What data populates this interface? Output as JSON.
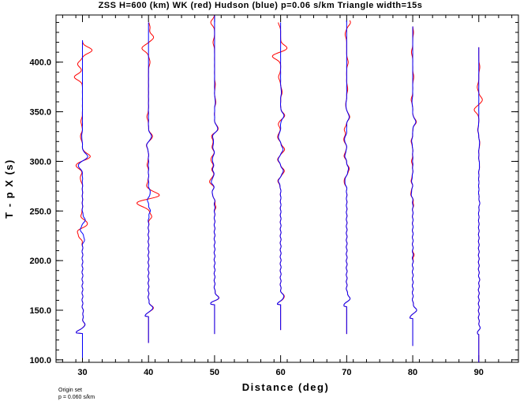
{
  "chart_data": {
    "type": "line",
    "title": "ZSS H=600 (km) WK (red) Hudson (blue) p=0.06 s/km Triangle width=15s",
    "xlabel": "Distance (deg)",
    "ylabel": "T - p X (s)",
    "xlim": [
      26,
      96
    ],
    "ylim": [
      97.5,
      447.5
    ],
    "xticks": [
      30,
      40,
      50,
      60,
      70,
      80,
      90
    ],
    "xtick_labels": [
      "30",
      "40",
      "50",
      "60",
      "70",
      "80",
      "90"
    ],
    "yticks": [
      100,
      150,
      200,
      250,
      300,
      350,
      400
    ],
    "ytick_labels": [
      "100.0",
      "150.0",
      "200.0",
      "250.0",
      "300.0",
      "350.0",
      "400.0"
    ],
    "grid": false,
    "series": [
      {
        "name": "WK",
        "color": "#ff0000"
      },
      {
        "name": "Hudson",
        "color": "#0000ff"
      }
    ],
    "traces": [
      {
        "distance": 30,
        "start": 102,
        "end": 422,
        "first_arrival": 128,
        "first_amp": -2.6,
        "red": [
          [
            135,
            0.8
          ],
          [
            147,
            0.3
          ],
          [
            225,
            -1.2
          ],
          [
            230,
            -1.6
          ],
          [
            237,
            2.2
          ],
          [
            245,
            -0.6
          ],
          [
            283,
            -0.9
          ],
          [
            296,
            -2.6
          ],
          [
            305,
            3.1
          ],
          [
            325,
            -0.8
          ],
          [
            340,
            -0.6
          ],
          [
            385,
            -3.2
          ],
          [
            398,
            -1.9
          ],
          [
            412,
            3.8
          ]
        ],
        "blue": [
          [
            135,
            0.9
          ],
          [
            147,
            0.3
          ],
          [
            222,
            0.8
          ],
          [
            232,
            -0.8
          ],
          [
            241,
            1.0
          ],
          [
            296,
            -1.7
          ],
          [
            305,
            2.1
          ],
          [
            325,
            -0.3
          ]
        ]
      },
      {
        "distance": 40,
        "start": 117,
        "end": 440,
        "first_arrival": 145,
        "first_amp": -1.5,
        "red": [
          [
            152,
            1.8
          ],
          [
            245,
            1.2
          ],
          [
            258,
            -4.8
          ],
          [
            266,
            4.4
          ],
          [
            276,
            -0.7
          ],
          [
            297,
            -0.5
          ],
          [
            316,
            -0.8
          ],
          [
            325,
            1.6
          ],
          [
            345,
            -0.6
          ],
          [
            400,
            0.6
          ],
          [
            414,
            -2.6
          ],
          [
            425,
            2.0
          ],
          [
            435,
            0.6
          ]
        ],
        "blue": [
          [
            152,
            1.6
          ],
          [
            250,
            0.6
          ],
          [
            262,
            -0.4
          ],
          [
            268,
            0.8
          ],
          [
            316,
            -0.7
          ],
          [
            325,
            1.2
          ]
        ]
      },
      {
        "distance": 50,
        "start": 126,
        "end": 447,
        "first_arrival": 157,
        "first_amp": -2.0,
        "red": [
          [
            162,
            1.7
          ],
          [
            255,
            0.4
          ],
          [
            268,
            -1.0
          ],
          [
            280,
            -2.0
          ],
          [
            292,
            -1.0
          ],
          [
            302,
            -1.5
          ],
          [
            315,
            -1.0
          ],
          [
            325,
            -1.2
          ],
          [
            333,
            1.5
          ],
          [
            360,
            0.5
          ],
          [
            377,
            0.3
          ],
          [
            420,
            -0.6
          ],
          [
            440,
            -1.5
          ]
        ],
        "blue": [
          [
            162,
            1.6
          ],
          [
            268,
            -1.0
          ],
          [
            280,
            -1.3
          ],
          [
            292,
            -0.7
          ],
          [
            302,
            -0.9
          ],
          [
            315,
            -0.7
          ],
          [
            325,
            -0.8
          ],
          [
            333,
            1.3
          ],
          [
            360,
            0.3
          ]
        ]
      },
      {
        "distance": 60,
        "start": 130,
        "end": 440,
        "first_arrival": 157,
        "first_amp": -1.4,
        "red": [
          [
            163,
            1.5
          ],
          [
            280,
            -1.0
          ],
          [
            290,
            1.4
          ],
          [
            302,
            -1.1
          ],
          [
            312,
            1.5
          ],
          [
            325,
            -1.2
          ],
          [
            338,
            -0.9
          ],
          [
            346,
            1.6
          ],
          [
            370,
            0.6
          ],
          [
            385,
            -0.8
          ],
          [
            406,
            -3.3
          ],
          [
            414,
            2.6
          ],
          [
            440,
            -0.9
          ]
        ],
        "blue": [
          [
            163,
            1.3
          ],
          [
            280,
            -0.8
          ],
          [
            290,
            1.0
          ],
          [
            302,
            -0.9
          ],
          [
            312,
            0.9
          ],
          [
            325,
            -0.9
          ],
          [
            346,
            1.3
          ],
          [
            370,
            0.3
          ]
        ]
      },
      {
        "distance": 70,
        "start": 126,
        "end": 442,
        "first_arrival": 155,
        "first_amp": -1.3,
        "red": [
          [
            162,
            1.2
          ],
          [
            280,
            -1.1
          ],
          [
            292,
            1.0
          ],
          [
            306,
            -1.0
          ],
          [
            322,
            -1.2
          ],
          [
            332,
            -0.9
          ],
          [
            345,
            1.2
          ],
          [
            357,
            -0.4
          ],
          [
            373,
            0.4
          ],
          [
            400,
            0.6
          ],
          [
            428,
            -0.6
          ],
          [
            440,
            1.5
          ]
        ],
        "blue": [
          [
            162,
            1.2
          ],
          [
            280,
            -0.8
          ],
          [
            292,
            0.7
          ],
          [
            306,
            -0.7
          ],
          [
            322,
            -0.9
          ],
          [
            345,
            1.0
          ],
          [
            357,
            -0.3
          ]
        ]
      },
      {
        "distance": 80,
        "start": 114,
        "end": 436,
        "first_arrival": 143,
        "first_amp": -1.3,
        "red": [
          [
            150,
            1.4
          ],
          [
            205,
            0.4
          ],
          [
            258,
            0.3
          ],
          [
            268,
            -0.8
          ],
          [
            281,
            -0.6
          ],
          [
            300,
            -0.4
          ],
          [
            320,
            -0.6
          ],
          [
            340,
            1.4
          ],
          [
            362,
            -0.6
          ],
          [
            385,
            0.4
          ],
          [
            410,
            -0.5
          ],
          [
            430,
            0.3
          ]
        ],
        "blue": [
          [
            150,
            1.4
          ],
          [
            268,
            -0.6
          ],
          [
            281,
            -0.4
          ],
          [
            320,
            -0.4
          ],
          [
            340,
            1.2
          ],
          [
            360,
            -0.3
          ]
        ]
      },
      {
        "distance": 90,
        "start": 97.5,
        "end": 415,
        "first_arrival": 127,
        "first_amp": -0.6,
        "red": [
          [
            132,
            0.4
          ],
          [
            180,
            0.2
          ],
          [
            258,
            0.3
          ],
          [
            296,
            0.3
          ],
          [
            318,
            0.4
          ],
          [
            332,
            -0.4
          ],
          [
            352,
            -1.8
          ],
          [
            362,
            1.4
          ],
          [
            375,
            -0.6
          ],
          [
            395,
            0.4
          ]
        ],
        "blue": [
          [
            132,
            0.4
          ],
          [
            180,
            0.2
          ],
          [
            258,
            0.3
          ],
          [
            296,
            0.3
          ],
          [
            318,
            0.3
          ],
          [
            332,
            -0.3
          ]
        ]
      }
    ]
  },
  "footer": {
    "line1": "Origin set",
    "line2": "p = 0.060 s/km"
  }
}
